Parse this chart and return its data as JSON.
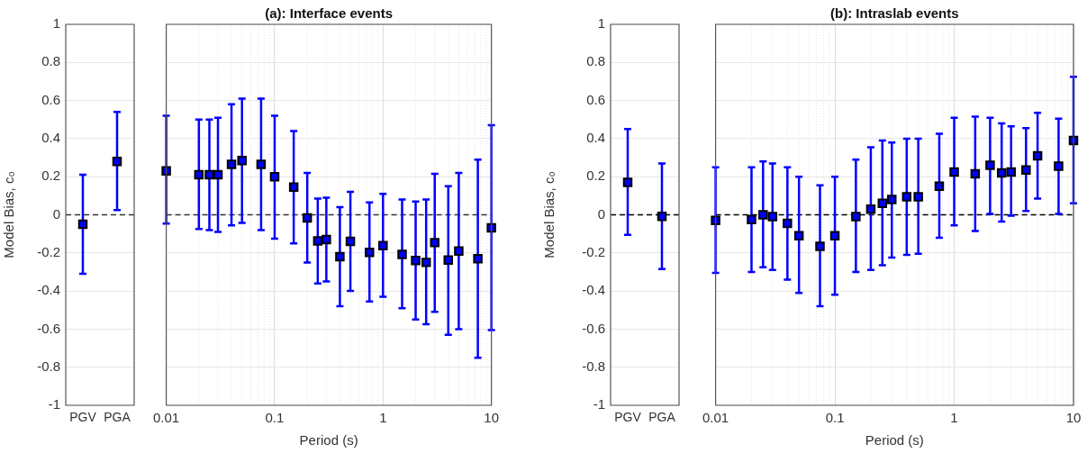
{
  "chart_data": [
    {
      "type": "scatter",
      "ylabel": "Model Bias, c₀",
      "categories": [
        "PGV",
        "PGA"
      ],
      "ylim": [
        -1,
        1
      ],
      "yticks": [
        -1,
        -0.8,
        -0.6,
        -0.4,
        -0.2,
        0,
        0.2,
        0.4,
        0.6,
        0.8,
        1
      ],
      "grid": "y",
      "marker": "square",
      "ref_lines": [
        {
          "axis": "y",
          "value": 0,
          "color": "#333333",
          "line_style": "dashed"
        }
      ],
      "series": [
        {
          "color": "#0000ff",
          "values": [
            -0.05,
            0.28
          ],
          "errors": [
            [
              -0.31,
              0.21
            ],
            [
              0.025,
              0.54
            ]
          ]
        }
      ]
    },
    {
      "type": "scatter",
      "title": "(a): Interface events",
      "xlabel": "Period (s)",
      "log": "x",
      "xlim": [
        0.01,
        10
      ],
      "xticks": [
        0.01,
        0.1,
        1,
        10
      ],
      "ylim": [
        -1,
        1
      ],
      "yticks": [
        -1,
        -0.8,
        -0.6,
        -0.4,
        -0.2,
        0,
        0.2,
        0.4,
        0.6,
        0.8,
        1
      ],
      "tick_labels": "x",
      "grid": true,
      "marker": "square",
      "ref_lines": [
        {
          "axis": "y",
          "value": 0,
          "color": "#333333",
          "line_style": "dashed"
        }
      ],
      "x": [
        0.01,
        0.02,
        0.025,
        0.03,
        0.04,
        0.05,
        0.075,
        0.1,
        0.15,
        0.2,
        0.25,
        0.3,
        0.4,
        0.5,
        0.75,
        1,
        1.5,
        2,
        2.5,
        3,
        4,
        5,
        7.5,
        10
      ],
      "series": [
        {
          "color": "#0000ff",
          "values": [
            0.23,
            0.21,
            0.21,
            0.21,
            0.265,
            0.285,
            0.265,
            0.2,
            0.145,
            -0.016,
            -0.137,
            -0.13,
            -0.22,
            -0.14,
            -0.197,
            -0.162,
            -0.208,
            -0.24,
            -0.25,
            -0.146,
            -0.238,
            -0.19,
            -0.23,
            -0.068
          ],
          "errors": [
            [
              -0.046,
              0.52
            ],
            [
              -0.074,
              0.5
            ],
            [
              -0.08,
              0.5
            ],
            [
              -0.09,
              0.51
            ],
            [
              -0.055,
              0.58
            ],
            [
              -0.043,
              0.61
            ],
            [
              -0.08,
              0.61
            ],
            [
              -0.125,
              0.52
            ],
            [
              -0.15,
              0.44
            ],
            [
              -0.25,
              0.22
            ],
            [
              -0.36,
              0.085
            ],
            [
              -0.35,
              0.09
            ],
            [
              -0.48,
              0.04
            ],
            [
              -0.4,
              0.12
            ],
            [
              -0.455,
              0.065
            ],
            [
              -0.43,
              0.11
            ],
            [
              -0.49,
              0.08
            ],
            [
              -0.55,
              0.07
            ],
            [
              -0.575,
              0.08
            ],
            [
              -0.51,
              0.215
            ],
            [
              -0.63,
              0.15
            ],
            [
              -0.6,
              0.22
            ],
            [
              -0.75,
              0.29
            ],
            [
              -0.605,
              0.47
            ]
          ]
        }
      ]
    },
    {
      "type": "scatter",
      "ylabel": "Model Bias, c₀",
      "categories": [
        "PGV",
        "PGA"
      ],
      "ylim": [
        -1,
        1
      ],
      "yticks": [
        -1,
        -0.8,
        -0.6,
        -0.4,
        -0.2,
        0,
        0.2,
        0.4,
        0.6,
        0.8,
        1
      ],
      "grid": "y",
      "marker": "square",
      "ref_lines": [
        {
          "axis": "y",
          "value": 0,
          "color": "#000000",
          "line_style": "dashed"
        }
      ],
      "series": [
        {
          "color": "#0000ff",
          "values": [
            0.17,
            -0.008
          ],
          "errors": [
            [
              -0.105,
              0.45
            ],
            [
              -0.285,
              0.27
            ]
          ]
        }
      ]
    },
    {
      "type": "scatter",
      "title": "(b): Intraslab events",
      "xlabel": "Period (s)",
      "log": "x",
      "xlim": [
        0.01,
        10
      ],
      "xticks": [
        0.01,
        0.1,
        1,
        10
      ],
      "ylim": [
        -1,
        1
      ],
      "yticks": [
        -1,
        -0.8,
        -0.6,
        -0.4,
        -0.2,
        0,
        0.2,
        0.4,
        0.6,
        0.8,
        1
      ],
      "tick_labels": "x",
      "grid": true,
      "marker": "square",
      "ref_lines": [
        {
          "axis": "y",
          "value": 0,
          "color": "#000000",
          "line_style": "dashed"
        }
      ],
      "x": [
        0.01,
        0.02,
        0.025,
        0.03,
        0.04,
        0.05,
        0.075,
        0.1,
        0.15,
        0.2,
        0.25,
        0.3,
        0.4,
        0.5,
        0.75,
        1,
        1.5,
        2,
        2.5,
        3,
        4,
        5,
        7.5,
        10
      ],
      "series": [
        {
          "color": "#0000ff",
          "values": [
            -0.03,
            -0.025,
            0.0,
            -0.01,
            -0.045,
            -0.11,
            -0.165,
            -0.11,
            -0.01,
            0.03,
            0.06,
            0.08,
            0.095,
            0.095,
            0.15,
            0.225,
            0.215,
            0.26,
            0.22,
            0.225,
            0.235,
            0.31,
            0.255,
            0.39
          ],
          "errors": [
            [
              -0.305,
              0.25
            ],
            [
              -0.3,
              0.25
            ],
            [
              -0.275,
              0.28
            ],
            [
              -0.29,
              0.27
            ],
            [
              -0.34,
              0.25
            ],
            [
              -0.41,
              0.2
            ],
            [
              -0.48,
              0.155
            ],
            [
              -0.42,
              0.2
            ],
            [
              -0.3,
              0.29
            ],
            [
              -0.29,
              0.355
            ],
            [
              -0.265,
              0.39
            ],
            [
              -0.225,
              0.38
            ],
            [
              -0.21,
              0.4
            ],
            [
              -0.205,
              0.4
            ],
            [
              -0.12,
              0.425
            ],
            [
              -0.055,
              0.51
            ],
            [
              -0.085,
              0.515
            ],
            [
              0.005,
              0.51
            ],
            [
              -0.035,
              0.48
            ],
            [
              -0.005,
              0.465
            ],
            [
              0.02,
              0.455
            ],
            [
              0.085,
              0.535
            ],
            [
              0.005,
              0.505
            ],
            [
              0.06,
              0.725
            ]
          ]
        }
      ]
    }
  ]
}
